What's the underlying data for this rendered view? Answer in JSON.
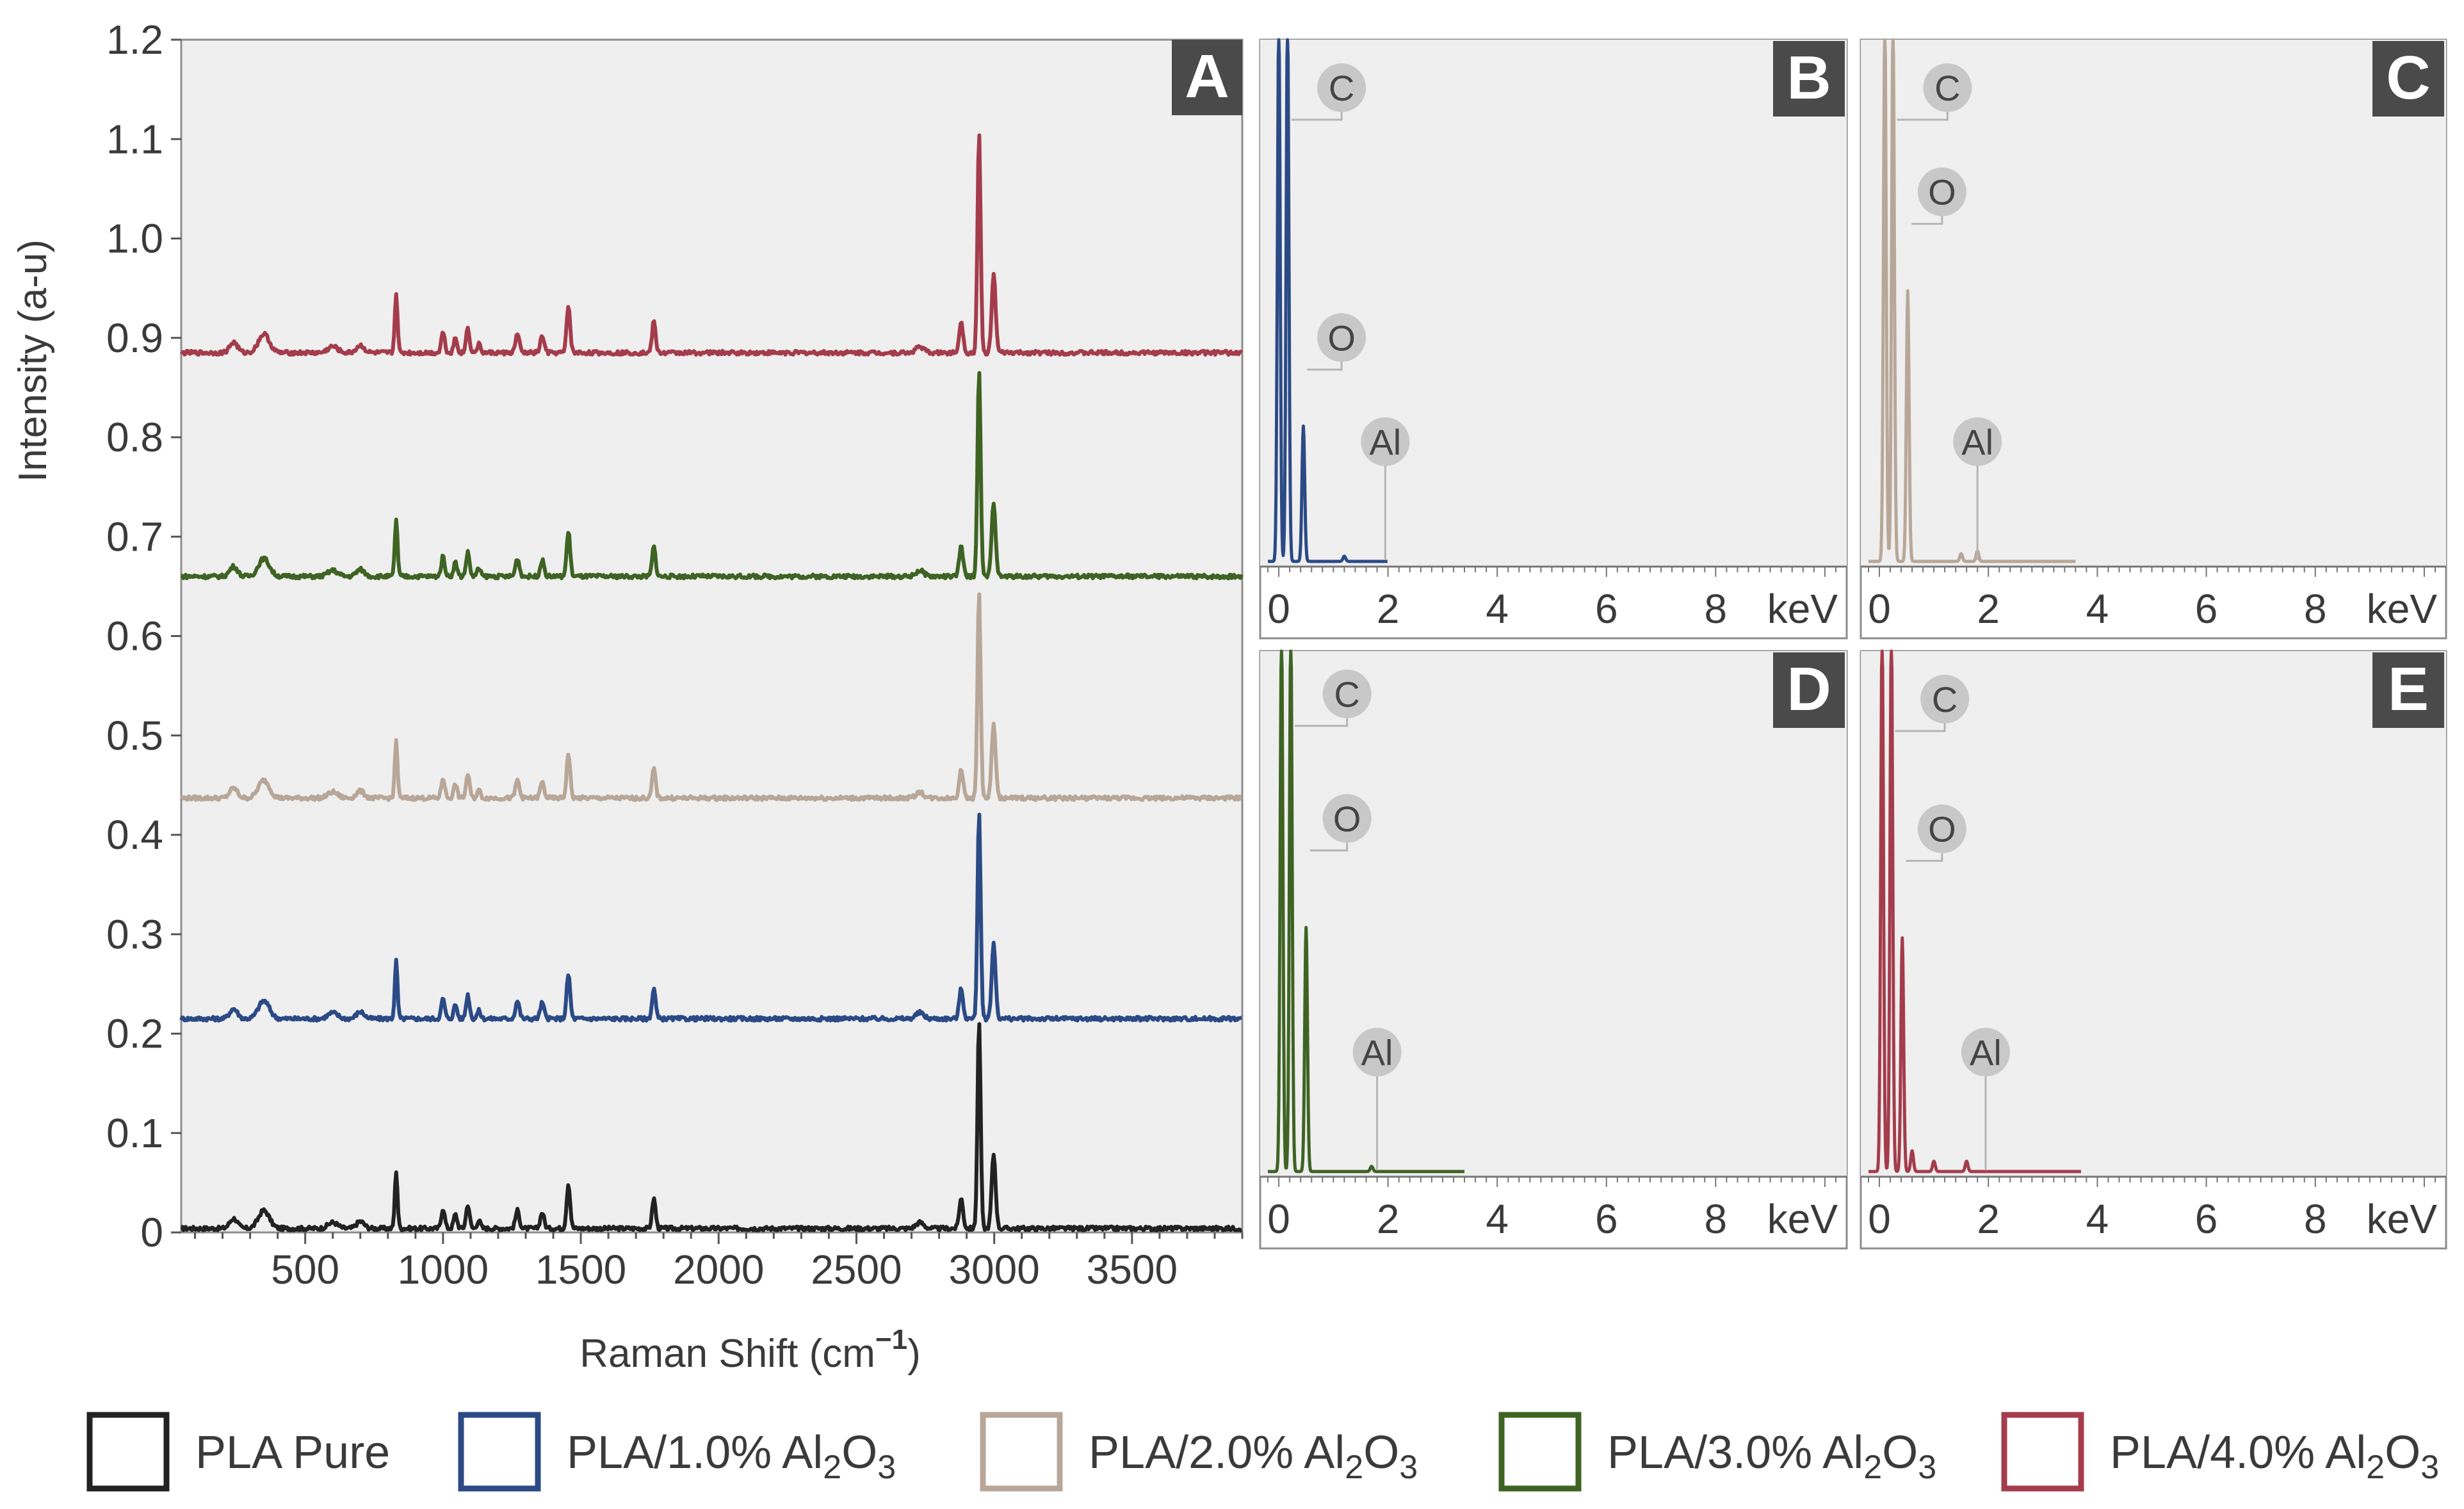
{
  "chart_data": [
    {
      "panel": "A",
      "type": "line",
      "xlabel": "Raman Shift (cm",
      "xlabel_sup": "−1",
      "xlabel_close": ")",
      "ylabel": "Intensity (a-u)",
      "xlim": [
        50,
        3900
      ],
      "ylim": [
        0,
        1.2
      ],
      "xticks": [
        "500",
        "1000",
        "1500",
        "2000",
        "2500",
        "3000",
        "3500"
      ],
      "xtick_values": [
        500,
        1000,
        1500,
        2000,
        2500,
        3000,
        3500
      ],
      "yticks": [
        "0",
        "0.1",
        "0.2",
        "0.3",
        "0.4",
        "0.5",
        "0.6",
        "0.7",
        "0.8",
        "0.9",
        "1.0",
        "1.1",
        "1.2"
      ],
      "ytick_values": [
        0,
        0.1,
        0.2,
        0.3,
        0.4,
        0.5,
        0.6,
        0.7,
        0.8,
        0.9,
        1.0,
        1.1,
        1.2
      ],
      "grid": false,
      "peaks": [
        {
          "center": 350,
          "height": 0.018,
          "width": 28
        },
        {
          "center": 240,
          "height": 0.01,
          "width": 20
        },
        {
          "center": 600,
          "height": 0.006,
          "width": 25
        },
        {
          "center": 700,
          "height": 0.007,
          "width": 20
        },
        {
          "center": 830,
          "height": 0.058,
          "width": 7
        },
        {
          "center": 1000,
          "height": 0.02,
          "width": 9
        },
        {
          "center": 1045,
          "height": 0.014,
          "width": 9
        },
        {
          "center": 1090,
          "height": 0.024,
          "width": 9
        },
        {
          "center": 1130,
          "height": 0.008,
          "width": 9
        },
        {
          "center": 1270,
          "height": 0.018,
          "width": 10
        },
        {
          "center": 1360,
          "height": 0.016,
          "width": 10
        },
        {
          "center": 1455,
          "height": 0.045,
          "width": 9
        },
        {
          "center": 1765,
          "height": 0.03,
          "width": 9
        },
        {
          "center": 2730,
          "height": 0.006,
          "width": 20
        },
        {
          "center": 2880,
          "height": 0.03,
          "width": 10
        },
        {
          "center": 2945,
          "height": 0.21,
          "width": 8
        },
        {
          "center": 2998,
          "height": 0.075,
          "width": 10
        }
      ],
      "baseline_noise": 0.004,
      "series": [
        {
          "name": "PLA Pure",
          "color": "#222222",
          "offset": 0.004,
          "scale": 1.0
        },
        {
          "name": "PLA/1.0% Al2O3",
          "color": "#2b4a86",
          "offset": 0.215,
          "scale": 1.0
        },
        {
          "name": "PLA/2.0% Al2O3",
          "color": "#b8a798",
          "offset": 0.437,
          "scale": 1.0
        },
        {
          "name": "PLA/3.0% Al2O3",
          "color": "#3e6323",
          "offset": 0.66,
          "scale": 1.0
        },
        {
          "name": "PLA/4.0% Al2O3",
          "color": "#a43c4c",
          "offset": 0.885,
          "scale": 1.05
        }
      ]
    },
    {
      "panel": "B",
      "type": "line",
      "xlabel": "keV",
      "xlim": [
        -0.2,
        10.4
      ],
      "xticks": [
        "0",
        "2",
        "4",
        "6",
        "8"
      ],
      "xtick_values": [
        0,
        2,
        4,
        6,
        8
      ],
      "ylim": [
        0,
        1
      ],
      "color": "#2b4a86",
      "end_kev": 2.0,
      "peaks": [
        {
          "kev": 0.0,
          "height": 1.05
        },
        {
          "kev": 0.16,
          "height": 1.05
        },
        {
          "kev": 0.45,
          "height": 0.26
        },
        {
          "kev": 1.2,
          "height": 0.01
        }
      ],
      "annotations": [
        {
          "label": "C",
          "at_kev": 0.16,
          "label_kev": 1.15,
          "label_y": 0.92
        },
        {
          "label": "O",
          "at_kev": 0.45,
          "label_kev": 1.15,
          "label_y": 0.44
        },
        {
          "label": "Al",
          "at_kev": 1.95,
          "label_kev": 1.95,
          "label_y": 0.24
        }
      ]
    },
    {
      "panel": "C",
      "type": "line",
      "xlabel": "keV",
      "xlim": [
        -0.2,
        10.4
      ],
      "xticks": [
        "0",
        "2",
        "4",
        "6",
        "8"
      ],
      "xtick_values": [
        0,
        2,
        4,
        6,
        8
      ],
      "ylim": [
        0,
        1
      ],
      "color": "#b8a798",
      "end_kev": 3.6,
      "peaks": [
        {
          "kev": 0.1,
          "height": 1.05
        },
        {
          "kev": 0.25,
          "height": 1.05
        },
        {
          "kev": 0.52,
          "height": 0.52
        },
        {
          "kev": 1.5,
          "height": 0.015
        },
        {
          "kev": 1.8,
          "height": 0.02
        }
      ],
      "annotations": [
        {
          "label": "C",
          "at_kev": 0.25,
          "label_kev": 1.25,
          "label_y": 0.92
        },
        {
          "label": "O",
          "at_kev": 0.52,
          "label_kev": 1.15,
          "label_y": 0.72
        },
        {
          "label": "Al",
          "at_kev": 1.8,
          "label_kev": 1.8,
          "label_y": 0.24
        }
      ]
    },
    {
      "panel": "D",
      "type": "line",
      "xlabel": "keV",
      "xlim": [
        -0.2,
        10.4
      ],
      "xticks": [
        "0",
        "2",
        "4",
        "6",
        "8"
      ],
      "xtick_values": [
        0,
        2,
        4,
        6,
        8
      ],
      "ylim": [
        0,
        1
      ],
      "color": "#3e6323",
      "end_kev": 3.4,
      "peaks": [
        {
          "kev": 0.05,
          "height": 1.05
        },
        {
          "kev": 0.22,
          "height": 1.05
        },
        {
          "kev": 0.5,
          "height": 0.47
        },
        {
          "kev": 1.7,
          "height": 0.01
        }
      ],
      "annotations": [
        {
          "label": "C",
          "at_kev": 0.22,
          "label_kev": 1.25,
          "label_y": 0.93
        },
        {
          "label": "O",
          "at_kev": 0.5,
          "label_kev": 1.25,
          "label_y": 0.69
        },
        {
          "label": "Al",
          "at_kev": 1.8,
          "label_kev": 1.8,
          "label_y": 0.24
        }
      ]
    },
    {
      "panel": "E",
      "type": "line",
      "xlabel": "keV",
      "xlim": [
        -0.2,
        10.4
      ],
      "xticks": [
        "0",
        "2",
        "4",
        "6",
        "8"
      ],
      "xtick_values": [
        0,
        2,
        4,
        6,
        8
      ],
      "ylim": [
        0,
        1
      ],
      "color": "#a43c4c",
      "end_kev": 3.7,
      "peaks": [
        {
          "kev": 0.05,
          "height": 1.05
        },
        {
          "kev": 0.22,
          "height": 1.05
        },
        {
          "kev": 0.42,
          "height": 0.45
        },
        {
          "kev": 0.6,
          "height": 0.04
        },
        {
          "kev": 1.0,
          "height": 0.02
        },
        {
          "kev": 1.6,
          "height": 0.02
        }
      ],
      "annotations": [
        {
          "label": "C",
          "at_kev": 0.22,
          "label_kev": 1.2,
          "label_y": 0.92
        },
        {
          "label": "O",
          "at_kev": 0.42,
          "label_kev": 1.15,
          "label_y": 0.67
        },
        {
          "label": "Al",
          "at_kev": 1.95,
          "label_kev": 1.95,
          "label_y": 0.24
        }
      ]
    }
  ],
  "legend": [
    {
      "label": "PLA Pure",
      "sub": "",
      "tail": "",
      "color": "#222222"
    },
    {
      "label": "PLA/1.0% Al",
      "sub": "2",
      "tail": "O",
      "sub2": "3",
      "color": "#2b4a86"
    },
    {
      "label": "PLA/2.0% Al",
      "sub": "2",
      "tail": "O",
      "sub2": "3",
      "color": "#b8a798"
    },
    {
      "label": "PLA/3.0% Al",
      "sub": "2",
      "tail": "O",
      "sub2": "3",
      "color": "#3e6323"
    },
    {
      "label": "PLA/4.0% Al",
      "sub": "2",
      "tail": "O",
      "sub2": "3",
      "color": "#a43c4c"
    }
  ]
}
